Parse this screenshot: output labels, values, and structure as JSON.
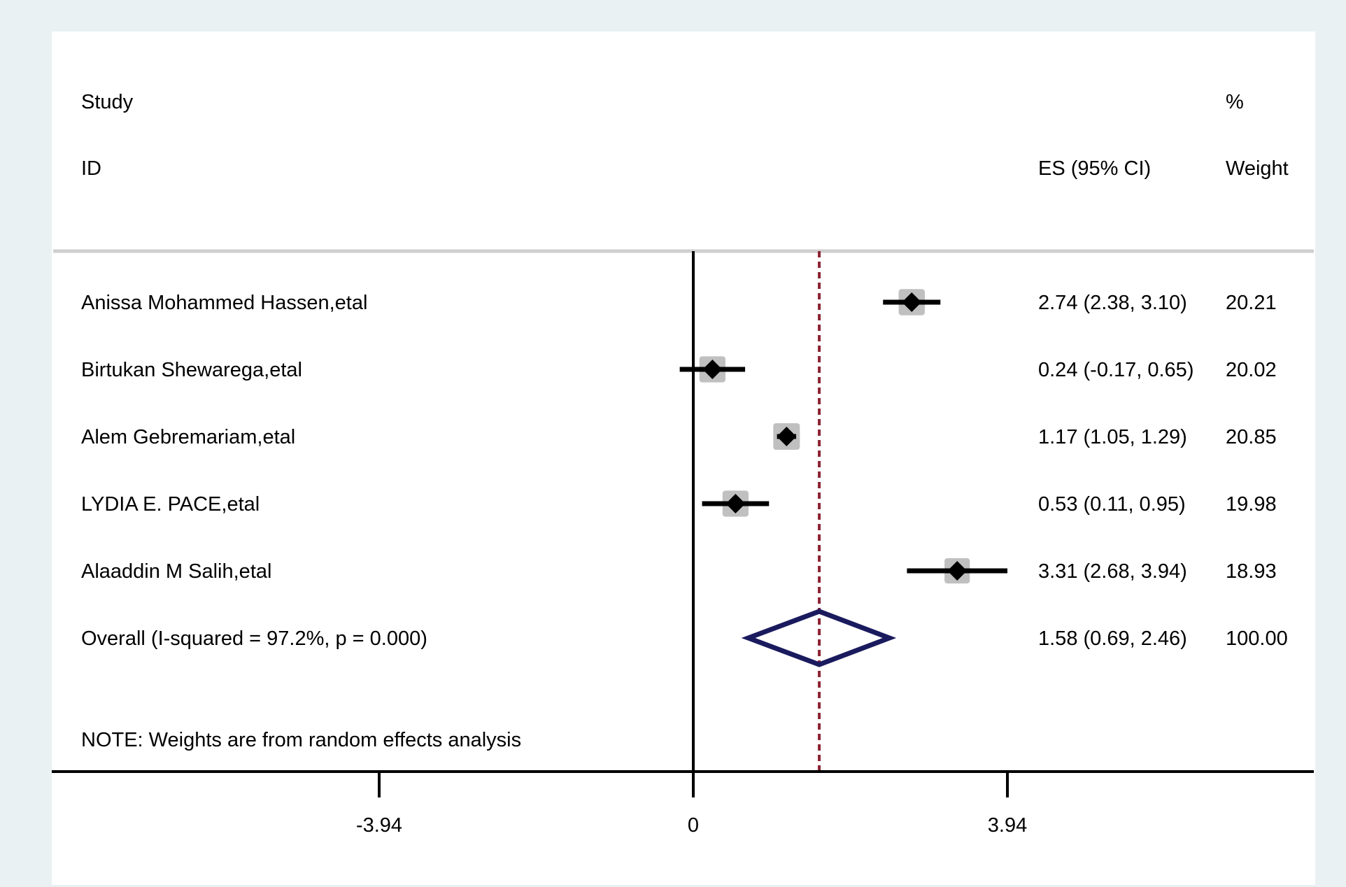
{
  "chart_data": {
    "type": "forest",
    "columns": {
      "study_header_1": "Study",
      "study_header_2": "ID",
      "es_header": "ES (95% CI)",
      "weight_header_1": "%",
      "weight_header_2": "Weight"
    },
    "studies": [
      {
        "label": "Anissa Mohammed Hassen,etal",
        "es": 2.74,
        "lo": 2.38,
        "hi": 3.1,
        "weight": 20.21,
        "es_text": "2.74 (2.38, 3.10)",
        "weight_text": "20.21"
      },
      {
        "label": "Birtukan Shewarega,etal",
        "es": 0.24,
        "lo": -0.17,
        "hi": 0.65,
        "weight": 20.02,
        "es_text": "0.24 (-0.17, 0.65)",
        "weight_text": "20.02"
      },
      {
        "label": "Alem Gebremariam,etal",
        "es": 1.17,
        "lo": 1.05,
        "hi": 1.29,
        "weight": 20.85,
        "es_text": "1.17 (1.05, 1.29)",
        "weight_text": "20.85"
      },
      {
        "label": "LYDIA E. PACE,etal",
        "es": 0.53,
        "lo": 0.11,
        "hi": 0.95,
        "weight": 19.98,
        "es_text": "0.53 (0.11, 0.95)",
        "weight_text": "19.98"
      },
      {
        "label": "Alaaddin M Salih,etal",
        "es": 3.31,
        "lo": 2.68,
        "hi": 3.94,
        "weight": 18.93,
        "es_text": "3.31 (2.68, 3.94)",
        "weight_text": "18.93"
      }
    ],
    "overall": {
      "label": "Overall  (I-squared = 97.2%, p = 0.000)",
      "es": 1.58,
      "lo": 0.69,
      "hi": 2.46,
      "es_text": "1.58 (0.69, 2.46)",
      "weight_text": "100.00"
    },
    "note": "NOTE: Weights are from random effects analysis",
    "xlim": [
      -3.94,
      3.94
    ],
    "null_line": 0,
    "ticks": [
      {
        "value": -3.94,
        "label": "-3.94"
      },
      {
        "value": 0,
        "label": "0"
      },
      {
        "value": 3.94,
        "label": "3.94"
      }
    ],
    "colors": {
      "background": "#eaf1f3",
      "panel": "#ffffff",
      "point": "#000000",
      "weight_box": "#c0c0c0",
      "overall_diamond": "#1a1a5e",
      "overall_line": "#8b2232",
      "divider": "#cfcfcf"
    }
  }
}
